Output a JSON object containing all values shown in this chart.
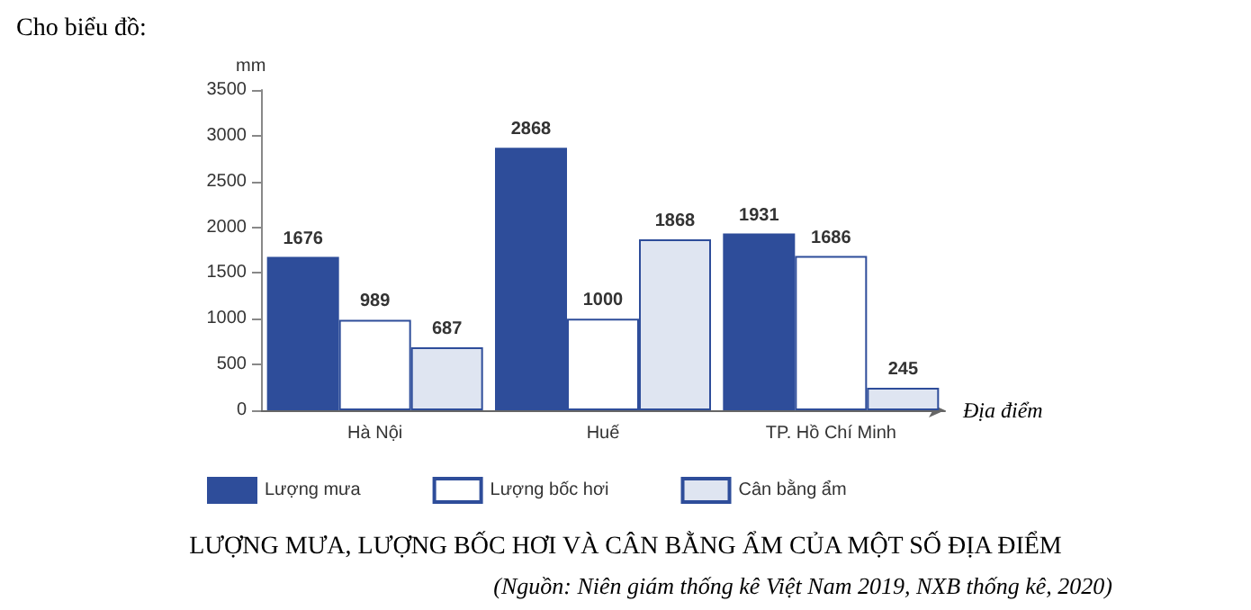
{
  "chart_data": {
    "type": "bar",
    "title": "LƯỢNG MƯA, LƯỢNG BỐC HƠI VÀ CÂN BẰNG ẨM CỦA MỘT SỐ ĐỊA ĐIỂM",
    "xlabel": "Địa điểm",
    "ylabel": "mm",
    "annotations": [
      "Cho biểu đồ:",
      "(Nguồn: Niên giám thống kê Việt Nam 2019, NXB thống kê, 2020)"
    ],
    "categories": [
      "Hà Nội",
      "Huế",
      "TP. Hồ Chí Minh"
    ],
    "series": [
      {
        "name": "Lượng mưa",
        "color": "#2e4d9a",
        "values": [
          1676,
          2868,
          1931
        ]
      },
      {
        "name": "Lượng bốc hơi",
        "color": "#ffffff",
        "values": [
          989,
          1000,
          1686
        ]
      },
      {
        "name": "Cân bằng ẩm",
        "color": "#dfe5f1",
        "values": [
          687,
          1868,
          245
        ]
      }
    ],
    "ylim": [
      0,
      3500
    ],
    "yticks": [
      0,
      500,
      1000,
      1500,
      2000,
      2500,
      3000,
      3500
    ],
    "grid": false,
    "legend": "bottom left",
    "data_labels": true
  }
}
